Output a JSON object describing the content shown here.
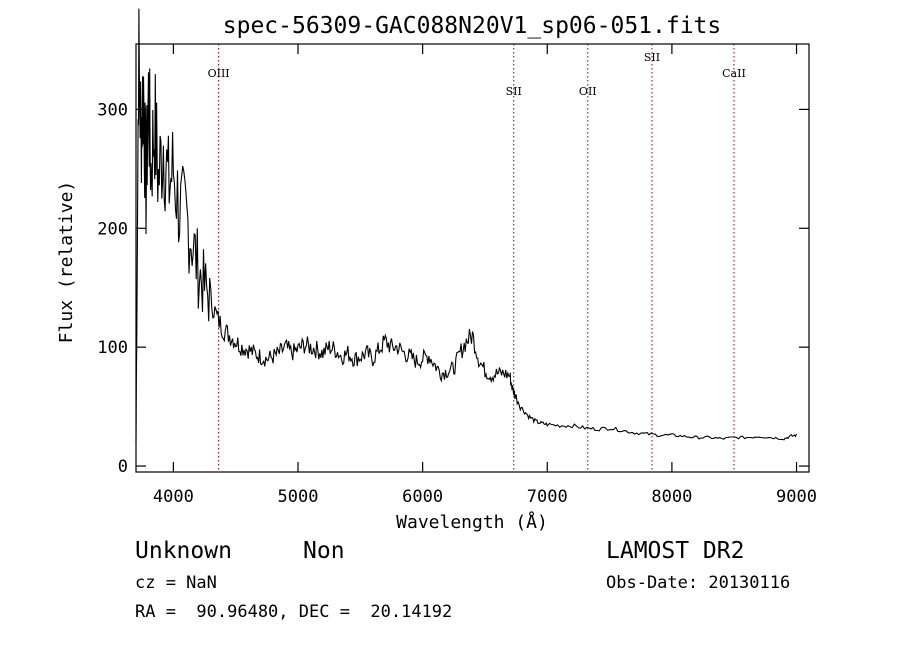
{
  "chart_data": {
    "type": "line",
    "title": "spec-56309-GAC088N20V1_sp06-051.fits",
    "xlabel": "Wavelength (Å)",
    "ylabel": "Flux (relative)",
    "xlim": [
      3700,
      9100
    ],
    "ylim": [
      -5,
      355
    ],
    "x_ticks": [
      4000,
      5000,
      6000,
      7000,
      8000,
      9000
    ],
    "y_ticks": [
      0,
      100,
      200,
      300
    ],
    "grid": false,
    "line_color": "#000000",
    "marker_color": "#8b0000",
    "series": [
      {
        "x": [
          3700,
          3720,
          3740,
          3760,
          3780,
          3800,
          3820,
          3850,
          3880,
          3920,
          3960,
          4000,
          4050,
          4100,
          4150,
          4200,
          4250,
          4300,
          4350,
          4400,
          4450,
          4500,
          4550,
          4600,
          4650,
          4700,
          4750,
          4800,
          4850,
          4900,
          4950,
          5000,
          5050,
          5100,
          5150,
          5200,
          5250,
          5300,
          5350,
          5400,
          5450,
          5500,
          5550,
          5600,
          5650,
          5700,
          5750,
          5800,
          5850,
          5900,
          5950,
          6000,
          6050,
          6100,
          6150,
          6200,
          6250,
          6300,
          6350,
          6400,
          6450,
          6500,
          6550,
          6600,
          6650,
          6700,
          6720,
          6750,
          6800,
          6850,
          6900,
          6950,
          7000,
          7100,
          7200,
          7300,
          7400,
          7500,
          7600,
          7700,
          7800,
          7900,
          8000,
          8100,
          8200,
          8300,
          8400,
          8500,
          8600,
          8700,
          8800,
          8900,
          8950,
          9000
        ],
        "y": [
          20,
          345,
          280,
          320,
          230,
          310,
          250,
          290,
          240,
          275,
          235,
          250,
          215,
          210,
          190,
          165,
          150,
          140,
          125,
          115,
          110,
          105,
          100,
          98,
          95,
          92,
          90,
          92,
          95,
          100,
          95,
          98,
          102,
          100,
          98,
          95,
          100,
          98,
          92,
          95,
          90,
          92,
          95,
          90,
          98,
          105,
          100,
          100,
          95,
          92,
          88,
          90,
          93,
          85,
          78,
          80,
          82,
          95,
          105,
          110,
          90,
          80,
          76,
          78,
          78,
          76,
          65,
          58,
          48,
          42,
          38,
          36,
          35,
          34,
          34,
          32,
          31,
          32,
          30,
          28,
          27,
          26,
          26,
          25,
          24,
          24,
          23,
          24,
          24,
          25,
          24,
          23,
          25,
          26
        ]
      }
    ],
    "line_markers": [
      {
        "label": "OIII",
        "x": 4363
      },
      {
        "label": "SII",
        "x": 6731
      },
      {
        "label": "OII",
        "x": 7325
      },
      {
        "label": "SII",
        "x": 7840
      },
      {
        "label": "CaII",
        "x": 8498
      }
    ]
  },
  "info": {
    "classification": "Unknown",
    "subclass": "Non",
    "survey": "LAMOST DR2",
    "redshift": "cz = NaN",
    "obs_date": "Obs-Date: 20130116",
    "coords": "RA =  90.96480, DEC =  20.14192"
  }
}
